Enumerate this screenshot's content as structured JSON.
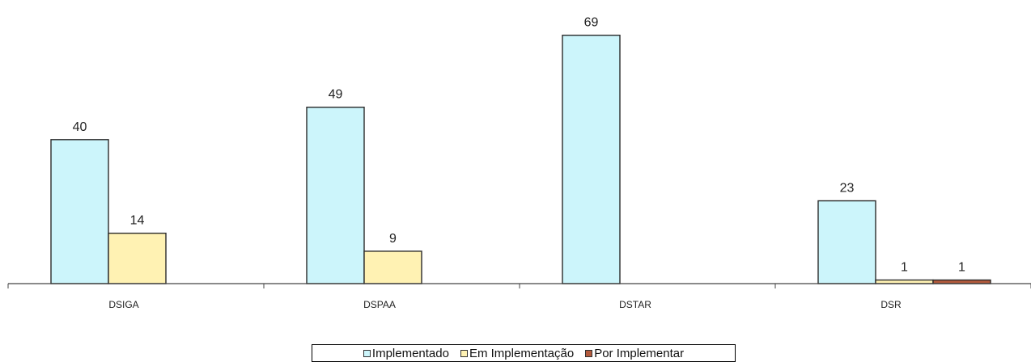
{
  "chart_data": {
    "type": "bar",
    "title": "",
    "xlabel": "",
    "ylabel": "",
    "categories": [
      "DSIGA",
      "DSPAA",
      "DSTAR",
      "DSR"
    ],
    "ylim": [
      0,
      80
    ],
    "grid": false,
    "legend_position": "bottom",
    "series": [
      {
        "name": "Implementado",
        "color": "#ccf5fb",
        "values": [
          40,
          49,
          69,
          23
        ],
        "labels": [
          "40",
          "49",
          "69",
          "23"
        ]
      },
      {
        "name": "Em Implementação",
        "color": "#fff2b3",
        "values": [
          14,
          9,
          null,
          1
        ],
        "labels": [
          "14",
          "9",
          "",
          "1"
        ]
      },
      {
        "name": "Por Implementar",
        "color": "#b35a3c",
        "values": [
          null,
          null,
          null,
          1
        ],
        "labels": [
          "",
          "",
          "",
          "1"
        ]
      }
    ]
  }
}
